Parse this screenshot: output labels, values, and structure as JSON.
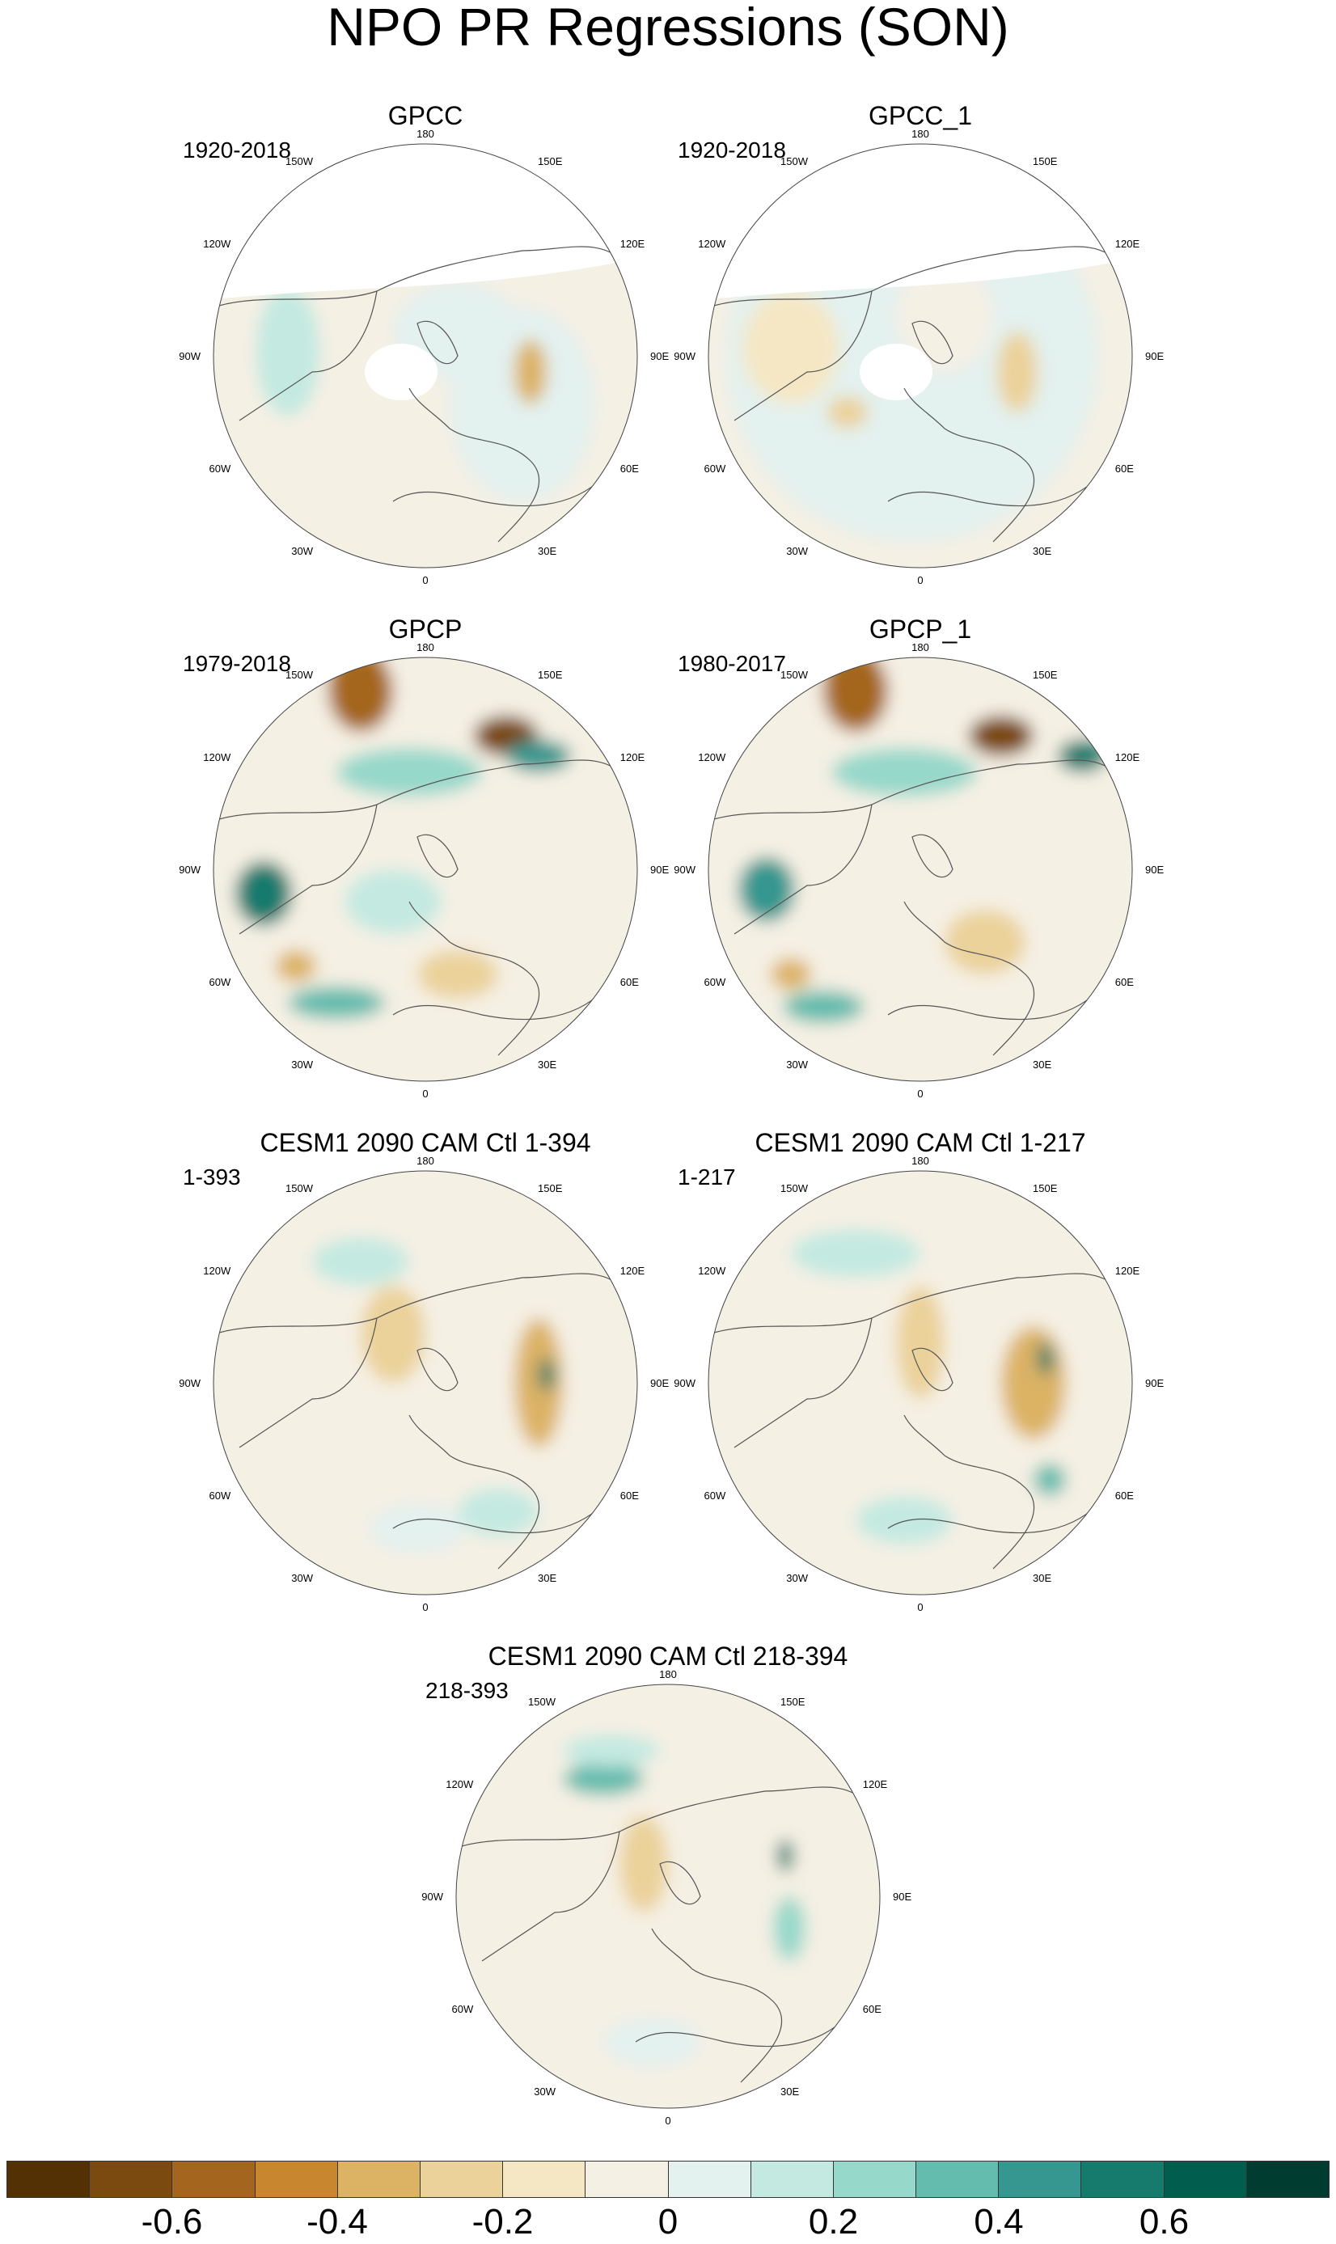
{
  "title": "NPO PR Regressions (SON)",
  "lon_labels": {
    "top": "180",
    "bottom": "0",
    "left": [
      "150W",
      "120W",
      "90W",
      "60W",
      "30W"
    ],
    "right": [
      "150E",
      "120E",
      "90E",
      "60E",
      "30E"
    ]
  },
  "panels": [
    {
      "title": "GPCC",
      "period": "1920-2018"
    },
    {
      "title": "GPCC_1",
      "period": "1920-2018"
    },
    {
      "title": "GPCP",
      "period": "1979-2018"
    },
    {
      "title": "GPCP_1",
      "period": "1980-2017"
    },
    {
      "title": "CESM1 2090 CAM Ctl 1-394",
      "period": "1-393"
    },
    {
      "title": "CESM1 2090 CAM Ctl 1-217",
      "period": "1-217"
    },
    {
      "title": "CESM1 2090 CAM Ctl 218-394",
      "period": "218-393"
    }
  ],
  "colorbar": {
    "colors": [
      "#543005",
      "#7a4a10",
      "#a4661e",
      "#c8872f",
      "#dcb265",
      "#ebd19a",
      "#f5e7c4",
      "#f5f0e4",
      "#e3f1ef",
      "#c3e9e1",
      "#96d8ca",
      "#63bcad",
      "#35978f",
      "#167a6d",
      "#015e4f",
      "#003c30"
    ],
    "tick_labels": [
      "-0.6",
      "-0.4",
      "-0.2",
      "0",
      "0.2",
      "0.4",
      "0.6"
    ]
  }
}
